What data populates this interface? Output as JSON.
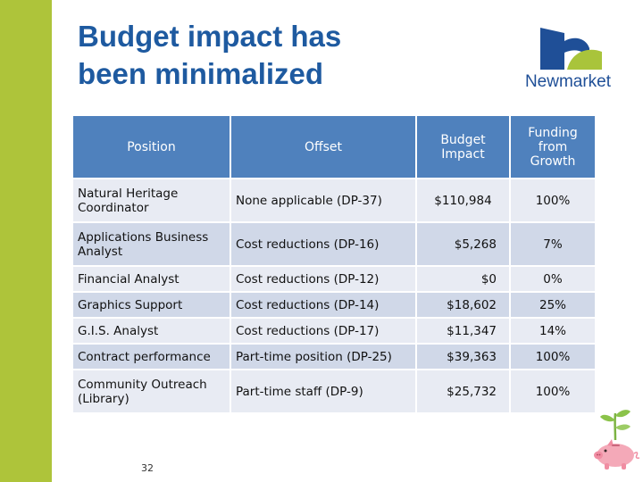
{
  "slide": {
    "title": "Budget impact has been minimalized",
    "page_number": "32",
    "logo": {
      "text": "Newmarket",
      "blue": "#1f4f97",
      "green": "#a9c43b"
    }
  },
  "table": {
    "headers": [
      "Position",
      "Offset",
      "Budget Impact",
      "Funding from Growth"
    ],
    "rows": [
      {
        "position": "Natural Heritage Coordinator",
        "offset": "None applicable  (DP-37)",
        "budget": "$110,984",
        "funding": "100%"
      },
      {
        "position": "Applications Business Analyst",
        "offset": "Cost reductions (DP-16)",
        "budget": "$5,268",
        "funding": "7%"
      },
      {
        "position": "Financial Analyst",
        "offset": "Cost reductions (DP-12)",
        "budget": "$0",
        "funding": "0%"
      },
      {
        "position": "Graphics Support",
        "offset": "Cost reductions (DP-14)",
        "budget": "$18,602",
        "funding": "25%"
      },
      {
        "position": "G.I.S. Analyst",
        "offset": "Cost reductions (DP-17)",
        "budget": "$11,347",
        "funding": "14%"
      },
      {
        "position": "Contract performance",
        "offset": "Part-time position (DP-25)",
        "budget": "$39,363",
        "funding": "100%"
      },
      {
        "position": "Community Outreach (Library)",
        "offset": "Part-time staff (DP-9)",
        "budget": "$25,732",
        "funding": "100%"
      }
    ]
  },
  "colors": {
    "accent_green": "#aec43a",
    "title_blue": "#1e5aa0",
    "header_blue": "#4f81bd",
    "row_light": "#e8ebf3",
    "row_dark": "#d0d8e8"
  },
  "icons": [
    "newmarket-logo",
    "piggy-bank-sprout-icon"
  ]
}
